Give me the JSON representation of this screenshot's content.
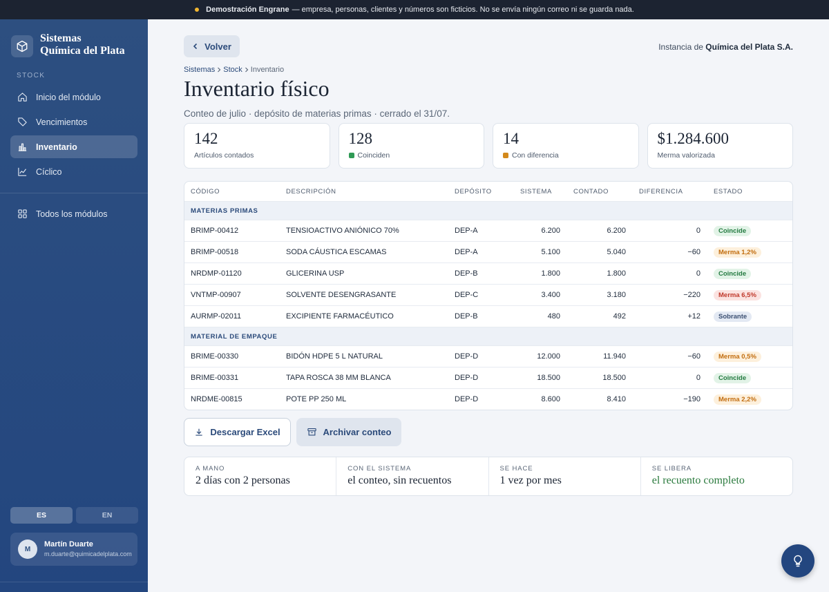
{
  "banner": {
    "brand": "Demostración Engrane",
    "text": "— empresa, personas, clientes y números son ficticios. No se envía ningún correo ni se guarda nada."
  },
  "sidebar": {
    "brand_line1": "Sistemas",
    "brand_line2": "Química del Plata",
    "section": "STOCK",
    "nav": [
      {
        "label": "Inicio del módulo"
      },
      {
        "label": "Vencimientos"
      },
      {
        "label": "Inventario",
        "active": true
      },
      {
        "label": "Cíclico"
      }
    ],
    "all_modules": "Todos los módulos",
    "languages": [
      {
        "label": "ES",
        "active": true
      },
      {
        "label": "EN"
      }
    ],
    "user": {
      "initial": "M",
      "name": "Martín Duarte",
      "email": "m.duarte@quimicadelplata.com"
    }
  },
  "header": {
    "back": "Volver",
    "instance_prefix": "Instancia de",
    "instance_name": "Química del Plata S.A.",
    "breadcrumb": [
      "Sistemas",
      "Stock",
      "Inventario"
    ],
    "title": "Inventario físico",
    "subtitle": "Conteo de julio · depósito de materias primas · cerrado el 31/07."
  },
  "stats": [
    {
      "value": "142",
      "label": "Artículos contados"
    },
    {
      "value": "128",
      "label": "Coinciden",
      "color": "#2f9a55"
    },
    {
      "value": "14",
      "label": "Con diferencia",
      "color": "#d3891c"
    },
    {
      "value": "$1.284.600",
      "label": "Merma valorizada"
    }
  ],
  "table": {
    "columns": [
      "CÓDIGO",
      "DESCRIPCIÓN",
      "DEPÓSITO",
      "SISTEMA",
      "CONTADO",
      "DIFERENCIA",
      "ESTADO"
    ],
    "groups": [
      {
        "name": "MATERIAS PRIMAS",
        "rows": [
          {
            "code": "BRIMP-00412",
            "description": "TENSIOACTIVO ANIÓNICO 70%",
            "depot": "DEP-A",
            "system": "6.200",
            "counted": "6.200",
            "difference": "0",
            "status": {
              "label": "Coincide",
              "color": "#237a40",
              "bg": "#e2f3e7"
            }
          },
          {
            "code": "BRIMP-00518",
            "description": "SODA CÁUSTICA ESCAMAS",
            "depot": "DEP-A",
            "system": "5.100",
            "counted": "5.040",
            "difference": "−60",
            "status": {
              "label": "Merma 1,2%",
              "color": "#c26d0f",
              "bg": "#fdf0dc"
            }
          },
          {
            "code": "NRDMP-01120",
            "description": "GLICERINA USP",
            "depot": "DEP-B",
            "system": "1.800",
            "counted": "1.800",
            "difference": "0",
            "status": {
              "label": "Coincide",
              "color": "#237a40",
              "bg": "#e2f3e7"
            }
          },
          {
            "code": "VNTMP-00907",
            "description": "SOLVENTE DESENGRASANTE",
            "depot": "DEP-C",
            "system": "3.400",
            "counted": "3.180",
            "difference": "−220",
            "status": {
              "label": "Merma 6,5%",
              "color": "#c0392b",
              "bg": "#fbe3e1"
            }
          },
          {
            "code": "AURMP-02011",
            "description": "EXCIPIENTE FARMACÉUTICO",
            "depot": "DEP-B",
            "system": "480",
            "counted": "492",
            "difference": "+12",
            "status": {
              "label": "Sobrante",
              "color": "#3b4f72",
              "bg": "#e3e9f3"
            }
          }
        ]
      },
      {
        "name": "MATERIAL DE EMPAQUE",
        "rows": [
          {
            "code": "BRIME-00330",
            "description": "BIDÓN HDPE 5 L NATURAL",
            "depot": "DEP-D",
            "system": "12.000",
            "counted": "11.940",
            "difference": "−60",
            "status": {
              "label": "Merma 0,5%",
              "color": "#c26d0f",
              "bg": "#fdf0dc"
            }
          },
          {
            "code": "BRIME-00331",
            "description": "TAPA ROSCA 38 MM BLANCA",
            "depot": "DEP-D",
            "system": "18.500",
            "counted": "18.500",
            "difference": "0",
            "status": {
              "label": "Coincide",
              "color": "#237a40",
              "bg": "#e2f3e7"
            }
          },
          {
            "code": "NRDME-00815",
            "description": "POTE PP 250 ML",
            "depot": "DEP-D",
            "system": "8.600",
            "counted": "8.410",
            "difference": "−190",
            "status": {
              "label": "Merma 2,2%",
              "color": "#c26d0f",
              "bg": "#fdf0dc"
            }
          }
        ]
      }
    ]
  },
  "actions": [
    "Descargar Excel",
    "Archivar conteo"
  ],
  "summary": [
    {
      "label": "A MANO",
      "value": "2 días con 2 personas"
    },
    {
      "label": "CON EL SISTEMA",
      "value": "el conteo, sin recuentos"
    },
    {
      "label": "SE HACE",
      "value": "1 vez por mes"
    },
    {
      "label": "SE LIBERA",
      "value": "el recuento completo",
      "color": "#2a7a3d"
    }
  ]
}
